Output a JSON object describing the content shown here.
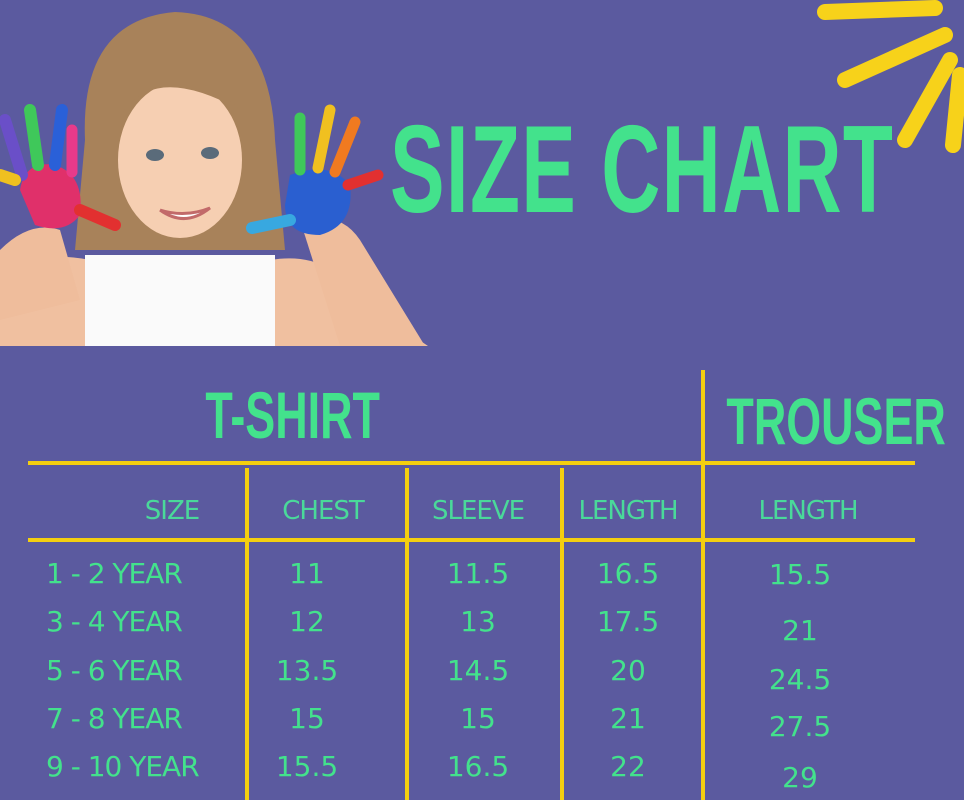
{
  "title": "SIZE CHART",
  "sections": {
    "tshirt": "T-SHIRT",
    "trouser": "TROUSER"
  },
  "headers": [
    "SIZE",
    "CHEST",
    "SLEEVE",
    "LENGTH",
    "LENGTH"
  ],
  "rows": [
    {
      "size": "1 - 2 YEAR",
      "chest": "11",
      "sleeve": "11.5",
      "length": "16.5",
      "trouser_length": "15.5"
    },
    {
      "size": "3 - 4 YEAR",
      "chest": "12",
      "sleeve": "13",
      "length": "17.5",
      "trouser_length": "21"
    },
    {
      "size": "5 - 6 YEAR",
      "chest": "13.5",
      "sleeve": "14.5",
      "length": "20",
      "trouser_length": "24.5"
    },
    {
      "size": "7 - 8 YEAR",
      "chest": "15",
      "sleeve": "15",
      "length": "21",
      "trouser_length": "27.5"
    },
    {
      "size": "9 - 10 YEAR",
      "chest": "15.5",
      "sleeve": "16.5",
      "length": "22",
      "trouser_length": "29"
    }
  ],
  "colors": {
    "background": "#5b5a9f",
    "text": "#43e28c",
    "lines": "#f4cf10",
    "sun": "#f7d21a"
  }
}
